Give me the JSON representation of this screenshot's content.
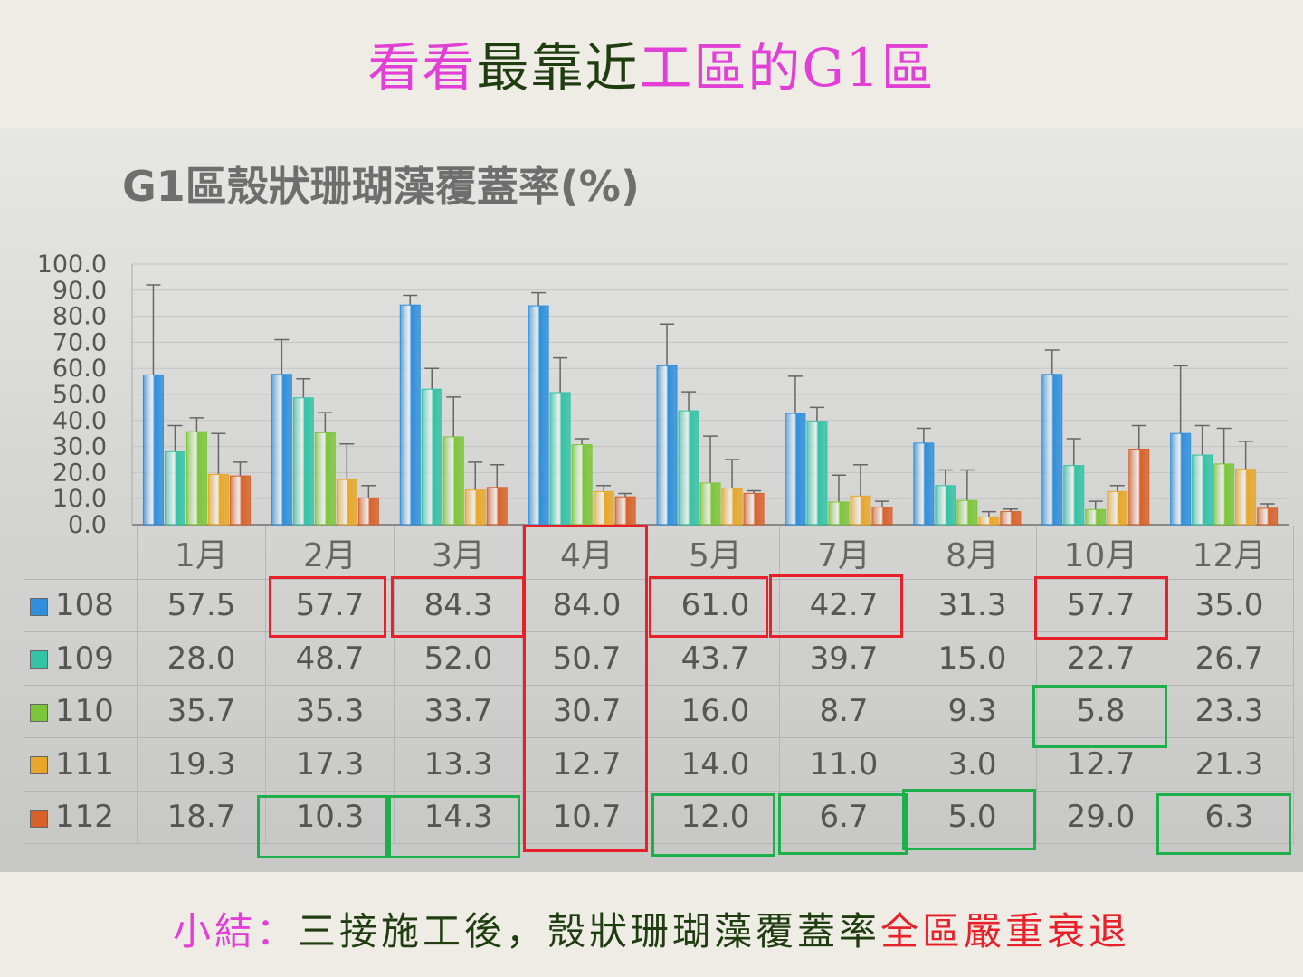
{
  "slide": {
    "title_parts": [
      {
        "text": "看看",
        "color": "#e23fd6"
      },
      {
        "text": "最靠近",
        "color": "#1f3d10"
      },
      {
        "text": "工區的G1區",
        "color": "#e23fd6"
      }
    ],
    "summary_parts": [
      {
        "text": "小結：",
        "color": "#e23fd6"
      },
      {
        "text": "三接施工後，殼狀珊瑚藻覆蓋率",
        "color": "#1f3d10"
      },
      {
        "text": "全區嚴重衰退",
        "color": "#e8202a"
      }
    ]
  },
  "chart_data": {
    "type": "bar",
    "title": "G1區殼狀珊瑚藻覆蓋率(%)",
    "categories": [
      "1月",
      "2月",
      "3月",
      "4月",
      "5月",
      "7月",
      "8月",
      "10月",
      "12月"
    ],
    "ylim": [
      0,
      100
    ],
    "yticks": [
      "0.0",
      "10.0",
      "20.0",
      "30.0",
      "40.0",
      "50.0",
      "60.0",
      "70.0",
      "80.0",
      "90.0",
      "100.0"
    ],
    "grid": true,
    "series": [
      {
        "name": "108",
        "color": "#2f8fdc",
        "values": [
          57.5,
          57.7,
          84.3,
          84.0,
          61.0,
          42.7,
          31.3,
          57.7,
          35.0
        ],
        "values_text": [
          "57.5",
          "57.7",
          "84.3",
          "84.0",
          "61.0",
          "42.7",
          "31.3",
          "57.7",
          "35.0"
        ],
        "err": [
          92,
          71,
          88,
          89,
          77,
          57,
          37,
          67,
          61
        ]
      },
      {
        "name": "109",
        "color": "#33c3a6",
        "values": [
          28.0,
          48.7,
          52.0,
          50.7,
          43.7,
          39.7,
          15.0,
          22.7,
          26.7
        ],
        "values_text": [
          "28.0",
          "48.7",
          "52.0",
          "50.7",
          "43.7",
          "39.7",
          "15.0",
          "22.7",
          "26.7"
        ],
        "err": [
          38,
          56,
          60,
          64,
          51,
          45,
          21,
          33,
          38
        ]
      },
      {
        "name": "110",
        "color": "#7cc63a",
        "values": [
          35.7,
          35.3,
          33.7,
          30.7,
          16.0,
          8.7,
          9.3,
          5.8,
          23.3
        ],
        "values_text": [
          "35.7",
          "35.3",
          "33.7",
          "30.7",
          "16.0",
          "8.7",
          "9.3",
          "5.8",
          "23.3"
        ],
        "err": [
          41,
          43,
          49,
          33,
          34,
          19,
          21,
          9,
          37
        ]
      },
      {
        "name": "111",
        "color": "#e8a72a",
        "values": [
          19.3,
          17.3,
          13.3,
          12.7,
          14.0,
          11.0,
          3.0,
          12.7,
          21.3
        ],
        "values_text": [
          "19.3",
          "17.3",
          "13.3",
          "12.7",
          "14.0",
          "11.0",
          "3.0",
          "12.7",
          "21.3"
        ],
        "err": [
          35,
          31,
          24,
          15,
          25,
          23,
          5,
          15,
          32
        ]
      },
      {
        "name": "112",
        "color": "#d8622a",
        "values": [
          18.7,
          10.3,
          14.3,
          10.7,
          12.0,
          6.7,
          5.0,
          29.0,
          6.3
        ],
        "values_text": [
          "18.7",
          "10.3",
          "14.3",
          "10.7",
          "12.0",
          "6.7",
          "5.0",
          "29.0",
          "6.3"
        ],
        "err": [
          24,
          15,
          23,
          12,
          13,
          9,
          6,
          38,
          8
        ]
      }
    ]
  },
  "highlights": {
    "red": "#e8202a",
    "green": "#1db04a"
  }
}
